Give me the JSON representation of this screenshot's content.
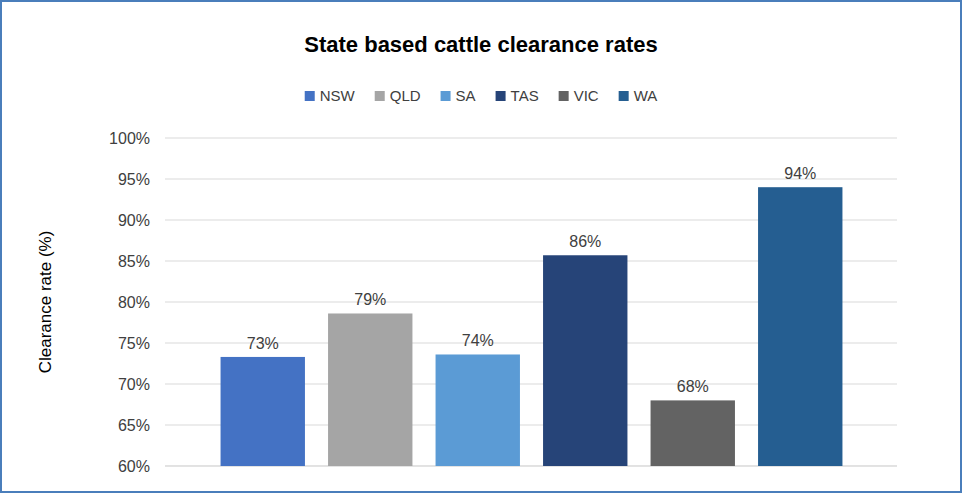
{
  "chart_data": {
    "type": "bar",
    "title": "State based cattle clearance rates",
    "y_label": "Clearance rate (%)",
    "categories": [
      "NSW",
      "QLD",
      "SA",
      "TAS",
      "VIC",
      "WA"
    ],
    "values": [
      73.3,
      78.6,
      73.6,
      85.7,
      68,
      94
    ],
    "value_labels": [
      "73%",
      "79%",
      "74%",
      "86%",
      "68%",
      "94%"
    ],
    "colors": [
      "#4472c4",
      "#a5a5a5",
      "#5b9bd5",
      "#264478",
      "#636363",
      "#255e91"
    ],
    "ylim": [
      60,
      100
    ],
    "yticks": [
      {
        "value": 60,
        "label": "60%"
      },
      {
        "value": 65,
        "label": "65%"
      },
      {
        "value": 70,
        "label": "70%"
      },
      {
        "value": 75,
        "label": "75%"
      },
      {
        "value": 80,
        "label": "80%"
      },
      {
        "value": 85,
        "label": "85%"
      },
      {
        "value": 90,
        "label": "90%"
      },
      {
        "value": 95,
        "label": "95%"
      },
      {
        "value": 100,
        "label": "100%"
      }
    ],
    "grid": true,
    "legend": "top",
    "data_labels": true,
    "tick_labels": "y"
  }
}
